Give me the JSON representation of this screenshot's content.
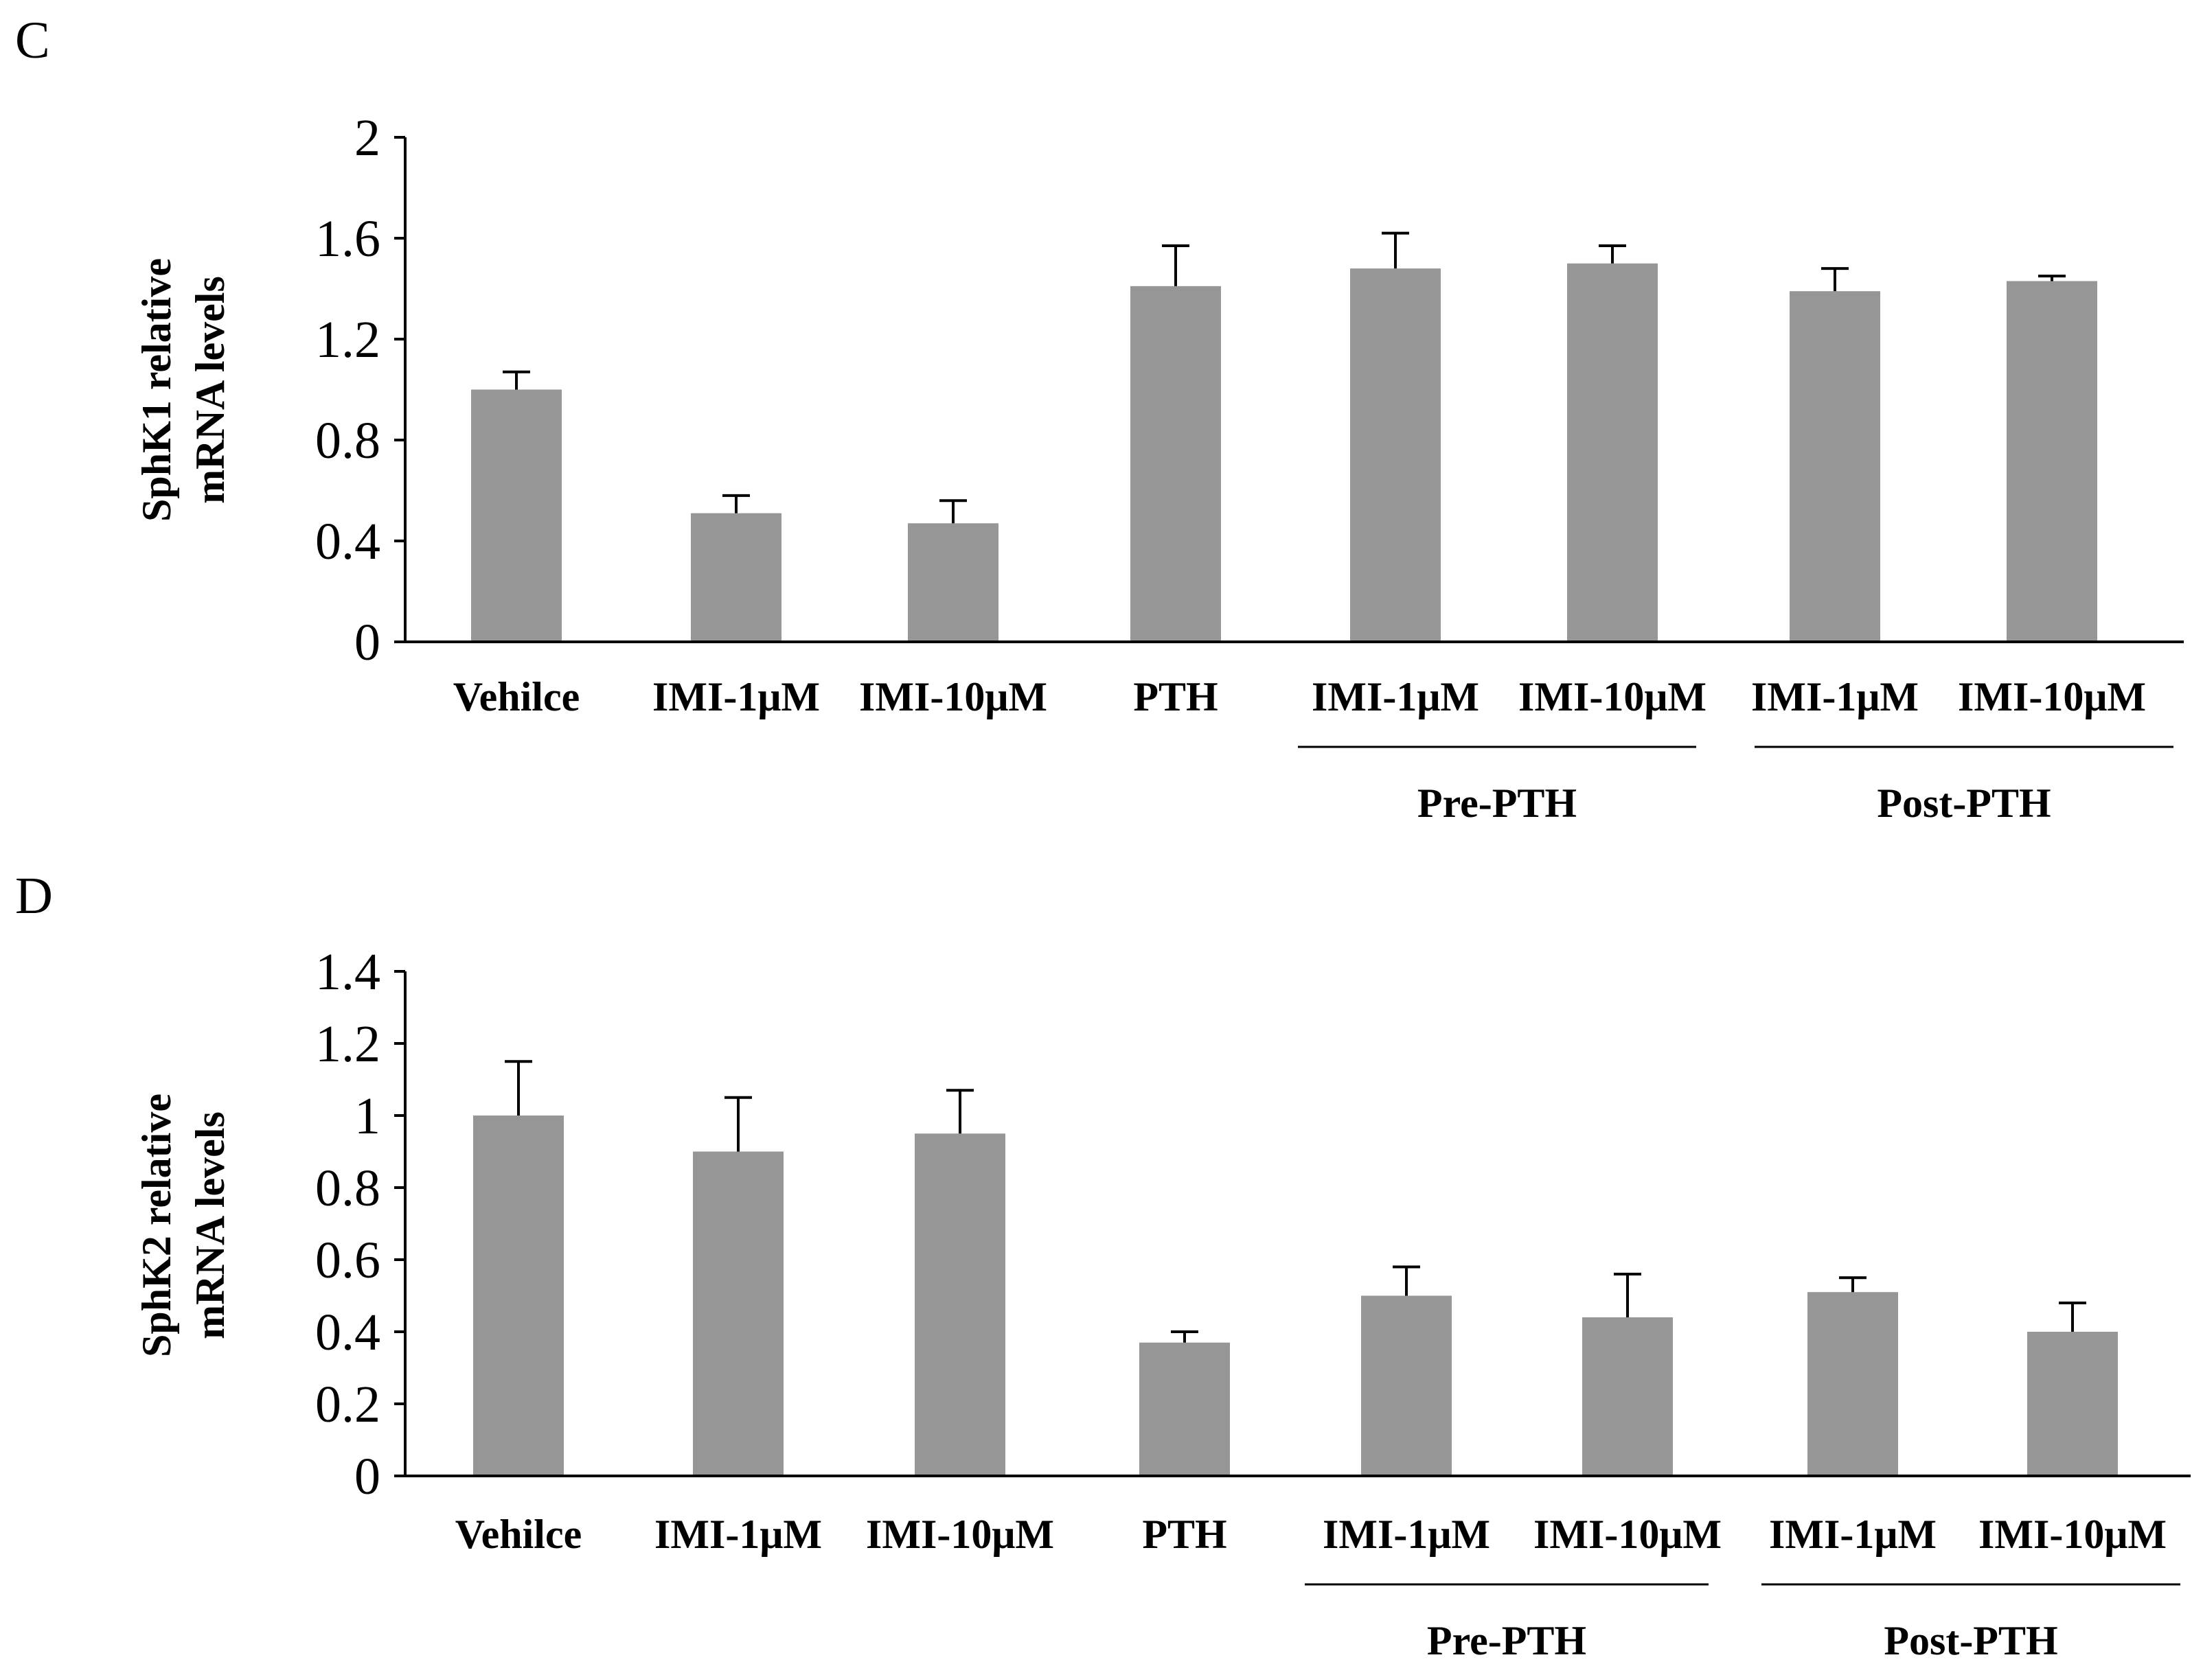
{
  "chart_data": [
    {
      "panel": "C",
      "type": "bar",
      "ylabel": [
        "SphK1 relative",
        "mRNA levels"
      ],
      "ylim": [
        0,
        2
      ],
      "yticks": [
        "0",
        "0.4",
        "0.8",
        "1.2",
        "1.6",
        "2"
      ],
      "yticks_values": [
        0,
        0.4,
        0.8,
        1.2,
        1.6,
        2
      ],
      "categories": [
        "Vehilce",
        "IMI-1μM",
        "IMI-10μM",
        "PTH",
        "IMI-1μM",
        "IMI-10μM",
        "IMI-1μM",
        "IMI-10μM"
      ],
      "values": [
        1.0,
        0.51,
        0.47,
        1.41,
        1.48,
        1.5,
        1.39,
        1.43
      ],
      "errors": [
        0.07,
        0.07,
        0.09,
        0.16,
        0.14,
        0.07,
        0.09,
        0.02
      ],
      "groups": [
        {
          "label": "Pre-PTH",
          "from": 4,
          "to": 5
        },
        {
          "label": "Post-PTH",
          "from": 6,
          "to": 7
        }
      ]
    },
    {
      "panel": "D",
      "type": "bar",
      "ylabel": [
        "SphK2 relative",
        "mRNA levels"
      ],
      "ylim": [
        0,
        1.4
      ],
      "yticks": [
        "0",
        "0.2",
        "0.4",
        "0.6",
        "0.8",
        "1",
        "1.2",
        "1.4"
      ],
      "yticks_values": [
        0,
        0.2,
        0.4,
        0.6,
        0.8,
        1.0,
        1.2,
        1.4
      ],
      "categories": [
        "Vehilce",
        "IMI-1μM",
        "IMI-10μM",
        "PTH",
        "IMI-1μM",
        "IMI-10μM",
        "IMI-1μM",
        "IMI-10μM"
      ],
      "values": [
        1.0,
        0.9,
        0.95,
        0.37,
        0.5,
        0.44,
        0.51,
        0.4
      ],
      "errors": [
        0.15,
        0.15,
        0.12,
        0.03,
        0.08,
        0.12,
        0.04,
        0.08
      ],
      "groups": [
        {
          "label": "Pre-PTH",
          "from": 4,
          "to": 5
        },
        {
          "label": "Post-PTH",
          "from": 6,
          "to": 7
        }
      ]
    }
  ]
}
